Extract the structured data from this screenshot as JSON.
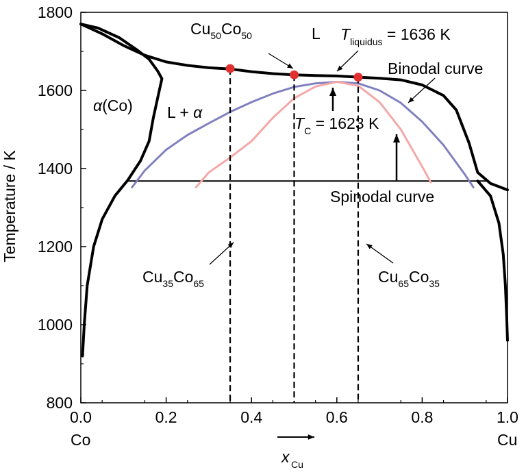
{
  "chart_data": {
    "type": "line",
    "title": "",
    "xlabel": "x",
    "xlabel_subscript": "Cu",
    "ylabel": "Temperature / K",
    "xlim": [
      0.0,
      1.0
    ],
    "ylim": [
      800,
      1800
    ],
    "x_ticks": [
      "0.0",
      "0.2",
      "0.4",
      "0.6",
      "0.8",
      "1.0"
    ],
    "y_ticks": [
      "800",
      "1000",
      "1200",
      "1400",
      "1600",
      "1800"
    ],
    "x_end_labels": {
      "left": "Co",
      "right": "Cu"
    },
    "grid": false,
    "legend": "none",
    "series": [
      {
        "name": "",
        "role": "liquidus",
        "color": "#000000",
        "points": [
          [
            0.0,
            1770
          ],
          [
            0.05,
            1745
          ],
          [
            0.1,
            1715
          ],
          [
            0.15,
            1690
          ],
          [
            0.2,
            1673
          ],
          [
            0.25,
            1664
          ],
          [
            0.3,
            1658
          ],
          [
            0.35,
            1655
          ],
          [
            0.4,
            1648
          ],
          [
            0.45,
            1643
          ],
          [
            0.5,
            1640
          ],
          [
            0.55,
            1638
          ],
          [
            0.6,
            1637
          ],
          [
            0.65,
            1634
          ],
          [
            0.7,
            1631
          ],
          [
            0.75,
            1627
          ],
          [
            0.8,
            1614
          ],
          [
            0.85,
            1587
          ],
          [
            0.88,
            1550
          ],
          [
            0.91,
            1465
          ],
          [
            0.93,
            1390
          ],
          [
            0.96,
            1362
          ],
          [
            1.0,
            1345
          ]
        ]
      },
      {
        "name": "",
        "role": "alpha-Co solidus",
        "color": "#000000",
        "points": [
          [
            0.0,
            1770
          ],
          [
            0.04,
            1760
          ],
          [
            0.09,
            1735
          ],
          [
            0.13,
            1705
          ],
          [
            0.16,
            1680
          ],
          [
            0.18,
            1650
          ],
          [
            0.19,
            1630
          ],
          [
            0.18,
            1580
          ],
          [
            0.17,
            1530
          ],
          [
            0.16,
            1470
          ],
          [
            0.14,
            1420
          ],
          [
            0.11,
            1370
          ],
          [
            0.08,
            1330
          ],
          [
            0.05,
            1270
          ],
          [
            0.03,
            1200
          ],
          [
            0.015,
            1100
          ],
          [
            0.008,
            1000
          ],
          [
            0.004,
            920
          ]
        ]
      },
      {
        "name": "",
        "role": "Cu solvus",
        "color": "#000000",
        "points": [
          [
            0.93,
            1368
          ],
          [
            0.96,
            1330
          ],
          [
            0.98,
            1260
          ],
          [
            0.99,
            1180
          ],
          [
            0.995,
            1100
          ],
          [
            0.998,
            1020
          ],
          [
            1.0,
            960
          ]
        ]
      },
      {
        "name": "",
        "role": "monotectic line",
        "color": "#000000",
        "points": [
          [
            0.11,
            1368
          ],
          [
            0.955,
            1368
          ]
        ]
      },
      {
        "name": "Binodal curve",
        "color": "#8080c0",
        "points": [
          [
            0.12,
            1352
          ],
          [
            0.15,
            1395
          ],
          [
            0.2,
            1448
          ],
          [
            0.25,
            1486
          ],
          [
            0.3,
            1516
          ],
          [
            0.35,
            1545
          ],
          [
            0.4,
            1570
          ],
          [
            0.45,
            1592
          ],
          [
            0.5,
            1609
          ],
          [
            0.55,
            1618
          ],
          [
            0.6,
            1622
          ],
          [
            0.65,
            1618
          ],
          [
            0.7,
            1600
          ],
          [
            0.75,
            1568
          ],
          [
            0.8,
            1520
          ],
          [
            0.85,
            1460
          ],
          [
            0.9,
            1385
          ],
          [
            0.92,
            1352
          ]
        ]
      },
      {
        "name": "Spinodal curve",
        "color": "#f4a8a8",
        "points": [
          [
            0.27,
            1352
          ],
          [
            0.3,
            1390
          ],
          [
            0.35,
            1428
          ],
          [
            0.4,
            1470
          ],
          [
            0.45,
            1530
          ],
          [
            0.5,
            1580
          ],
          [
            0.55,
            1610
          ],
          [
            0.6,
            1622
          ],
          [
            0.65,
            1612
          ],
          [
            0.7,
            1570
          ],
          [
            0.75,
            1500
          ],
          [
            0.8,
            1405
          ],
          [
            0.82,
            1365
          ]
        ]
      }
    ],
    "markers": [
      {
        "x": 0.35,
        "y": 1656,
        "color": "#e03030"
      },
      {
        "x": 0.5,
        "y": 1640,
        "color": "#e03030"
      },
      {
        "x": 0.65,
        "y": 1634,
        "color": "#e03030"
      }
    ],
    "vertical_dashed_lines": [
      0.35,
      0.5,
      0.65
    ],
    "annotations": {
      "cu50": {
        "base": "Cu",
        "sub1": "50",
        "mid": "Co",
        "sub2": "50"
      },
      "cu35": {
        "base": "Cu",
        "sub1": "35",
        "mid": "Co",
        "sub2": "65"
      },
      "cu65": {
        "base": "Cu",
        "sub1": "65",
        "mid": "Co",
        "sub2": "35"
      },
      "liquid": "L",
      "tliquidus": {
        "symbol": "T",
        "sub": "liquidus",
        "value": " = 1636 K"
      },
      "tc": {
        "symbol": "T",
        "sub": "C",
        "value": " = 1623 K"
      },
      "binodal": "Binodal curve",
      "spinodal": "Spinodal curve",
      "l_alpha": {
        "prefix": "L + ",
        "symbol": "α"
      },
      "alpha_co": {
        "symbol": "α",
        "suffix": "(Co)"
      }
    }
  }
}
